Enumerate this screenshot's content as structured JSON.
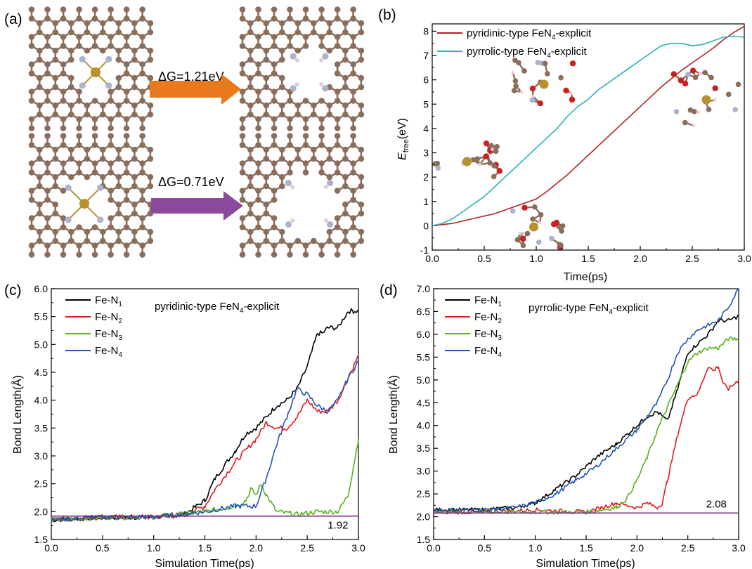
{
  "panel_a": {
    "label": "(a)",
    "arrow_top": {
      "text": "ΔG=1.21eV",
      "color": "#e8791c"
    },
    "arrow_bottom": {
      "text": "ΔG=0.71eV",
      "color": "#8b4a9c"
    }
  },
  "atom_colors": {
    "carbon": "#8b6d5c",
    "nitrogen": "#aab4d0",
    "iron": "#b8902c",
    "oxygen": "#cc1f1f",
    "hydrogen": "#f2d0d6"
  },
  "chart_data": [
    {
      "panel": "(b)",
      "type": "line",
      "title": "",
      "xlabel": "Time(ps)",
      "ylabel_main": "E",
      "ylabel_sub": "free",
      "ylabel_tail": "(eV)",
      "xlim": [
        0.0,
        3.0
      ],
      "ylim": [
        -1,
        8.3
      ],
      "xticks": [
        "0.0",
        "0.5",
        "1.0",
        "1.5",
        "2.0",
        "2.5",
        "3.0"
      ],
      "yticks": [
        "-1",
        "0",
        "1",
        "2",
        "3",
        "4",
        "5",
        "6",
        "7",
        "8"
      ],
      "legend_position": "top-left",
      "series": [
        {
          "name_main": "pyridinic-type FeN",
          "name_sub": "4",
          "name_tail": "-explicit",
          "color": "#b22222",
          "x": [
            0,
            0.2,
            0.4,
            0.6,
            0.8,
            1.0,
            1.1,
            1.2,
            1.3,
            1.4,
            1.5,
            1.6,
            1.7,
            1.8,
            1.9,
            2.0,
            2.1,
            2.2,
            2.3,
            2.4,
            2.5,
            2.6,
            2.7,
            2.8,
            2.9,
            3.0
          ],
          "y": [
            0.0,
            0.1,
            0.3,
            0.5,
            0.8,
            1.1,
            1.4,
            1.75,
            2.1,
            2.5,
            2.9,
            3.3,
            3.7,
            4.1,
            4.5,
            4.9,
            5.3,
            5.7,
            6.05,
            6.4,
            6.7,
            7.0,
            7.3,
            7.65,
            7.95,
            8.2
          ]
        },
        {
          "name_main": "pyrrolic-type FeN",
          "name_sub": "4",
          "name_tail": "-explicit",
          "color": "#2ab3b3",
          "x": [
            0,
            0.1,
            0.2,
            0.3,
            0.4,
            0.5,
            0.6,
            0.7,
            0.8,
            0.9,
            1.0,
            1.1,
            1.2,
            1.3,
            1.4,
            1.5,
            1.6,
            1.7,
            1.8,
            1.9,
            2.0,
            2.1,
            2.2,
            2.3,
            2.4,
            2.5,
            2.6,
            2.7,
            2.8,
            2.9,
            3.0
          ],
          "y": [
            0.0,
            0.1,
            0.3,
            0.6,
            0.9,
            1.2,
            1.6,
            2.0,
            2.4,
            2.8,
            3.2,
            3.6,
            4.0,
            4.5,
            4.9,
            5.2,
            5.6,
            5.9,
            6.2,
            6.5,
            6.8,
            7.1,
            7.4,
            7.5,
            7.5,
            7.4,
            7.45,
            7.6,
            7.75,
            7.8,
            7.75
          ]
        }
      ]
    },
    {
      "panel": "(c)",
      "type": "line",
      "title_main": "pyridinic-type FeN",
      "title_sub": "4",
      "title_tail": "-explicit",
      "xlabel": "Simulation Time(ps)",
      "ylabel": "Bond Length(Å)",
      "xlim": [
        0.0,
        3.0
      ],
      "ylim": [
        1.5,
        6.0
      ],
      "xticks": [
        "0.0",
        "0.5",
        "1.0",
        "1.5",
        "2.0",
        "2.5",
        "3.0"
      ],
      "yticks": [
        "1.5",
        "2.0",
        "2.5",
        "3.0",
        "3.5",
        "4.0",
        "4.5",
        "5.0",
        "5.5",
        "6.0"
      ],
      "legend_position": "top-left",
      "reference_line": {
        "value": 1.92,
        "label": "1.92",
        "color": "#7b2d8e"
      },
      "series": [
        {
          "name_main": "Fe-N",
          "name_sub": "1",
          "color": "#000000",
          "x": [
            0,
            0.5,
            1.0,
            1.3,
            1.5,
            1.6,
            1.8,
            1.9,
            2.0,
            2.1,
            2.2,
            2.3,
            2.4,
            2.5,
            2.6,
            2.65,
            2.7,
            2.8,
            2.9,
            2.95,
            3.0
          ],
          "y": [
            1.85,
            1.9,
            1.9,
            1.95,
            2.2,
            2.6,
            3.1,
            3.4,
            3.5,
            3.7,
            3.9,
            4.0,
            4.2,
            4.6,
            5.2,
            5.2,
            5.3,
            5.3,
            5.6,
            5.6,
            5.6
          ]
        },
        {
          "name_main": "Fe-N",
          "name_sub": "2",
          "color": "#e31a1c",
          "x": [
            0,
            0.5,
            1.0,
            1.3,
            1.5,
            1.6,
            1.8,
            1.9,
            2.0,
            2.1,
            2.2,
            2.3,
            2.4,
            2.5,
            2.6,
            2.7,
            2.8,
            2.9,
            3.0
          ],
          "y": [
            1.85,
            1.9,
            1.9,
            1.95,
            2.1,
            2.4,
            2.9,
            3.1,
            3.3,
            3.6,
            3.5,
            3.5,
            3.7,
            4.0,
            3.8,
            3.8,
            4.0,
            4.4,
            4.8
          ]
        },
        {
          "name_main": "Fe-N",
          "name_sub": "3",
          "color": "#55b31a",
          "x": [
            0,
            0.5,
            1.0,
            1.5,
            1.8,
            1.9,
            1.95,
            2.0,
            2.05,
            2.1,
            2.2,
            2.4,
            2.6,
            2.8,
            2.9,
            2.95,
            3.0
          ],
          "y": [
            1.85,
            1.9,
            1.9,
            2.0,
            2.1,
            2.2,
            2.4,
            2.3,
            2.5,
            2.3,
            2.0,
            1.95,
            2.0,
            2.0,
            2.3,
            2.8,
            3.3
          ]
        },
        {
          "name_main": "Fe-N",
          "name_sub": "4",
          "color": "#1f55b3",
          "x": [
            0,
            0.5,
            1.0,
            1.5,
            1.8,
            2.0,
            2.1,
            2.2,
            2.3,
            2.4,
            2.5,
            2.6,
            2.7,
            2.8,
            2.9,
            3.0
          ],
          "y": [
            1.85,
            1.9,
            1.9,
            2.0,
            2.1,
            2.1,
            2.6,
            3.2,
            3.7,
            4.2,
            4.1,
            3.9,
            3.8,
            4.0,
            4.4,
            4.7
          ]
        }
      ]
    },
    {
      "panel": "(d)",
      "type": "line",
      "title_main": "pyrrolic-type FeN",
      "title_sub": "4",
      "title_tail": "-explicit",
      "xlabel": "Simulation Time(ps)",
      "ylabel": "Bond Length(Å)",
      "xlim": [
        0.0,
        3.0
      ],
      "ylim": [
        1.5,
        7.0
      ],
      "xticks": [
        "0.0",
        "0.5",
        "1.0",
        "1.5",
        "2.0",
        "2.5",
        "3.0"
      ],
      "yticks": [
        "1.5",
        "2.0",
        "2.5",
        "3.0",
        "3.5",
        "4.0",
        "4.5",
        "5.0",
        "5.5",
        "6.0",
        "6.5",
        "7.0"
      ],
      "legend_position": "top-left",
      "reference_line": {
        "value": 2.08,
        "label": "2.08",
        "color": "#7b2d8e"
      },
      "series": [
        {
          "name_main": "Fe-N",
          "name_sub": "1",
          "color": "#000000",
          "x": [
            0,
            0.5,
            0.8,
            1.0,
            1.2,
            1.4,
            1.5,
            1.6,
            1.8,
            2.0,
            2.1,
            2.2,
            2.3,
            2.4,
            2.5,
            2.6,
            2.7,
            2.8,
            2.9,
            3.0
          ],
          "y": [
            2.15,
            2.15,
            2.2,
            2.3,
            2.6,
            2.9,
            3.1,
            3.3,
            3.6,
            4.0,
            4.2,
            4.3,
            4.1,
            4.8,
            5.6,
            5.8,
            6.0,
            6.3,
            6.3,
            6.4
          ]
        },
        {
          "name_main": "Fe-N",
          "name_sub": "2",
          "color": "#e31a1c",
          "x": [
            0,
            0.5,
            1.0,
            1.5,
            1.8,
            2.0,
            2.1,
            2.2,
            2.25,
            2.3,
            2.4,
            2.5,
            2.6,
            2.7,
            2.75,
            2.8,
            2.85,
            2.9,
            3.0
          ],
          "y": [
            2.1,
            2.1,
            2.15,
            2.1,
            2.3,
            2.2,
            2.3,
            2.2,
            2.3,
            2.8,
            3.8,
            4.6,
            4.7,
            5.3,
            5.2,
            5.3,
            4.9,
            4.8,
            5.0
          ]
        },
        {
          "name_main": "Fe-N",
          "name_sub": "3",
          "color": "#55b31a",
          "x": [
            0,
            0.5,
            1.0,
            1.5,
            1.8,
            1.9,
            2.0,
            2.1,
            2.2,
            2.3,
            2.4,
            2.5,
            2.6,
            2.7,
            2.8,
            2.9,
            3.0
          ],
          "y": [
            2.1,
            2.1,
            2.1,
            2.1,
            2.2,
            2.4,
            2.8,
            3.3,
            3.9,
            4.4,
            4.9,
            5.4,
            5.6,
            5.7,
            5.7,
            5.9,
            5.9
          ]
        },
        {
          "name_main": "Fe-N",
          "name_sub": "4",
          "color": "#1f55b3",
          "x": [
            0,
            0.5,
            0.8,
            1.0,
            1.2,
            1.4,
            1.6,
            1.8,
            2.0,
            2.1,
            2.2,
            2.3,
            2.4,
            2.5,
            2.6,
            2.7,
            2.8,
            2.9,
            3.0
          ],
          "y": [
            2.15,
            2.15,
            2.2,
            2.3,
            2.5,
            2.8,
            3.1,
            3.5,
            3.9,
            4.2,
            4.5,
            5.0,
            5.6,
            5.9,
            6.1,
            6.2,
            6.3,
            6.6,
            7.0
          ]
        }
      ]
    }
  ]
}
